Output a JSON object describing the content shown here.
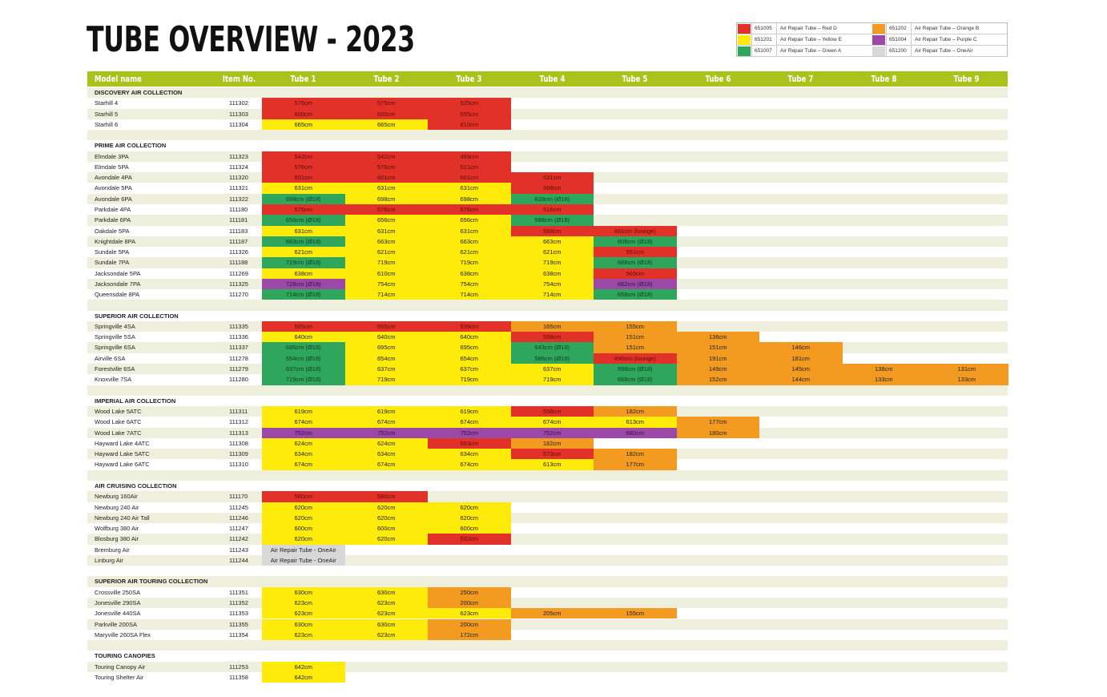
{
  "title": "TUBE OVERVIEW - 2023",
  "colors": {
    "R": "#e13128",
    "Y": "#ffeb0a",
    "G": "#2ea65b",
    "O": "#f39a20",
    "P": "#9b48a7",
    "A": "#d8d8d8",
    "header": "#a9c31c",
    "stripe": "#eef0dd"
  },
  "legend": [
    {
      "color": "R",
      "code": "651005",
      "name": "Air Repair Tube – Red D"
    },
    {
      "color": "Y",
      "code": "651201",
      "name": "Air Repair Tube – Yellow E"
    },
    {
      "color": "G",
      "code": "651007",
      "name": "Air Repair Tube – Green A"
    },
    {
      "color": "O",
      "code": "651202",
      "name": "Air Repair Tube – Orange B"
    },
    {
      "color": "P",
      "code": "651004",
      "name": "Air Repair Tube – Purple C"
    },
    {
      "color": "A",
      "code": "651200",
      "name": "Air Repair Tube – OneAir"
    }
  ],
  "columns": [
    "Model name",
    "Item No.",
    "Tube 1",
    "Tube 2",
    "Tube 3",
    "Tube 4",
    "Tube 5",
    "Tube 6",
    "Tube 7",
    "Tube 8",
    "Tube 9"
  ],
  "sections": [
    {
      "name": "DISCOVERY AIR COLLECTION",
      "rows": [
        {
          "model": "Starhill 4",
          "item": "111302",
          "cells": [
            [
              "575cm",
              "R"
            ],
            [
              "575cm",
              "R"
            ],
            [
              "525cm",
              "R"
            ]
          ]
        },
        {
          "model": "Starhill 5",
          "item": "111303",
          "cells": [
            [
              "600cm",
              "R"
            ],
            [
              "600cm",
              "R"
            ],
            [
              "555cm",
              "R"
            ]
          ]
        },
        {
          "model": "Starhill 6",
          "item": "111304",
          "cells": [
            [
              "665cm",
              "Y"
            ],
            [
              "665cm",
              "Y"
            ],
            [
              "610cm",
              "R"
            ]
          ]
        }
      ]
    },
    {
      "name": "PRIME AIR COLLECTION",
      "rows": [
        {
          "model": "Elmdale 3PA",
          "item": "111323",
          "cells": [
            [
              "542cm",
              "R"
            ],
            [
              "542cm",
              "R"
            ],
            [
              "489cm",
              "R"
            ]
          ]
        },
        {
          "model": "Elmdale 5PA",
          "item": "111324",
          "cells": [
            [
              "576cm",
              "R"
            ],
            [
              "576cm",
              "R"
            ],
            [
              "521cm",
              "R"
            ]
          ]
        },
        {
          "model": "Avondale 4PA",
          "item": "111320",
          "cells": [
            [
              "601cm",
              "R"
            ],
            [
              "601cm",
              "R"
            ],
            [
              "601cm",
              "R"
            ],
            [
              "531cm",
              "R"
            ]
          ]
        },
        {
          "model": "Avondale 5PA",
          "item": "111321",
          "cells": [
            [
              "631cm",
              "Y"
            ],
            [
              "631cm",
              "Y"
            ],
            [
              "631cm",
              "Y"
            ],
            [
              "568cm",
              "R"
            ]
          ]
        },
        {
          "model": "Avondale 6PA",
          "item": "111322",
          "cells": [
            [
              "698cm (Ø18)",
              "G"
            ],
            [
              "698cm",
              "Y"
            ],
            [
              "698cm",
              "Y"
            ],
            [
              "628cm (Ø18)",
              "G"
            ]
          ]
        },
        {
          "model": "Parkdale 4PA",
          "item": "111180",
          "cells": [
            [
              "576cm",
              "R"
            ],
            [
              "576cm",
              "R"
            ],
            [
              "576cm",
              "R"
            ],
            [
              "516cm",
              "R"
            ]
          ]
        },
        {
          "model": "Parkdale 6PA",
          "item": "111181",
          "cells": [
            [
              "656cm (Ø18)",
              "G"
            ],
            [
              "656cm",
              "Y"
            ],
            [
              "656cm",
              "Y"
            ],
            [
              "598cm (Ø18)",
              "G"
            ]
          ]
        },
        {
          "model": "Oakdale 5PA",
          "item": "111183",
          "cells": [
            [
              "631cm",
              "Y"
            ],
            [
              "631cm",
              "Y"
            ],
            [
              "631cm",
              "Y"
            ],
            [
              "569cm",
              "R"
            ],
            [
              "481cm (lounge)",
              "R"
            ]
          ]
        },
        {
          "model": "Knightdale 8PA",
          "item": "111187",
          "cells": [
            [
              "663cm (Ø18)",
              "G"
            ],
            [
              "663cm",
              "Y"
            ],
            [
              "663cm",
              "Y"
            ],
            [
              "663cm",
              "Y"
            ],
            [
              "608cm (Ø18)",
              "G"
            ]
          ]
        },
        {
          "model": "Sundale 5PA",
          "item": "111326",
          "cells": [
            [
              "621cm",
              "Y"
            ],
            [
              "621cm",
              "Y"
            ],
            [
              "621cm",
              "Y"
            ],
            [
              "621cm",
              "Y"
            ],
            [
              "551cm",
              "R"
            ]
          ]
        },
        {
          "model": "Sundale 7PA",
          "item": "111188",
          "cells": [
            [
              "719cm (Ø18)",
              "G"
            ],
            [
              "719cm",
              "Y"
            ],
            [
              "719cm",
              "Y"
            ],
            [
              "719cm",
              "Y"
            ],
            [
              "668cm (Ø18)",
              "G"
            ]
          ]
        },
        {
          "model": "Jacksondale 5PA",
          "item": "111269",
          "cells": [
            [
              "638cm",
              "Y"
            ],
            [
              "610cm",
              "Y"
            ],
            [
              "638cm",
              "Y"
            ],
            [
              "638cm",
              "Y"
            ],
            [
              "569cm",
              "R"
            ]
          ]
        },
        {
          "model": "Jacksondale 7PA",
          "item": "111325",
          "cells": [
            [
              "728cm (Ø18)",
              "P"
            ],
            [
              "754cm",
              "Y"
            ],
            [
              "754cm",
              "Y"
            ],
            [
              "754cm",
              "Y"
            ],
            [
              "682cm (Ø18)",
              "P"
            ]
          ]
        },
        {
          "model": "Queensdale 8PA",
          "item": "111270",
          "cells": [
            [
              "714cm (Ø18)",
              "G"
            ],
            [
              "714cm",
              "Y"
            ],
            [
              "714cm",
              "Y"
            ],
            [
              "714cm",
              "Y"
            ],
            [
              "658cm (Ø18)",
              "G"
            ]
          ]
        }
      ]
    },
    {
      "name": "SUPERIOR AIR COLLECTION",
      "rows": [
        {
          "model": "Springville 4SA",
          "item": "111335",
          "cells": [
            [
              "595cm",
              "R"
            ],
            [
              "595cm",
              "R"
            ],
            [
              "539cm",
              "R"
            ],
            [
              "165cm",
              "O"
            ],
            [
              "155cm",
              "O"
            ]
          ]
        },
        {
          "model": "Springville 5SA",
          "item": "111336",
          "cells": [
            [
              "640cm",
              "Y"
            ],
            [
              "640cm",
              "Y"
            ],
            [
              "640cm",
              "Y"
            ],
            [
              "558cm",
              "R"
            ],
            [
              "151cm",
              "O"
            ],
            [
              "136cm",
              "O"
            ]
          ]
        },
        {
          "model": "Springville 6SA",
          "item": "111337",
          "cells": [
            [
              "695cm (Ø18)",
              "G"
            ],
            [
              "695cm",
              "Y"
            ],
            [
              "695cm",
              "Y"
            ],
            [
              "643cm (Ø18)",
              "G"
            ],
            [
              "151cm",
              "O"
            ],
            [
              "151cm",
              "O"
            ],
            [
              "146cm",
              "O"
            ]
          ]
        },
        {
          "model": "Airville 6SA",
          "item": "111278",
          "cells": [
            [
              "654cm (Ø18)",
              "G"
            ],
            [
              "654cm",
              "Y"
            ],
            [
              "654cm",
              "Y"
            ],
            [
              "586cm (Ø18)",
              "G"
            ],
            [
              "490cm (lounge)",
              "R"
            ],
            [
              "191cm",
              "O"
            ],
            [
              "181cm",
              "O"
            ]
          ]
        },
        {
          "model": "Forestville 6SA",
          "item": "111279",
          "cells": [
            [
              "637cm (Ø18)",
              "G"
            ],
            [
              "637cm",
              "Y"
            ],
            [
              "637cm",
              "Y"
            ],
            [
              "637cm",
              "Y"
            ],
            [
              "596cm (Ø18)",
              "G"
            ],
            [
              "149cm",
              "O"
            ],
            [
              "145cm",
              "O"
            ],
            [
              "138cm",
              "O"
            ],
            [
              "131cm",
              "O"
            ]
          ]
        },
        {
          "model": "Knoxville 7SA",
          "item": "111280",
          "cells": [
            [
              "719cm (Ø18)",
              "G"
            ],
            [
              "719cm",
              "Y"
            ],
            [
              "719cm",
              "Y"
            ],
            [
              "719cm",
              "Y"
            ],
            [
              "668cm (Ø18)",
              "G"
            ],
            [
              "152cm",
              "O"
            ],
            [
              "144cm",
              "O"
            ],
            [
              "133cm",
              "O"
            ],
            [
              "133cm",
              "O"
            ]
          ]
        }
      ]
    },
    {
      "name": "IMPERIAL AIR COLLECTION",
      "rows": [
        {
          "model": "Wood Lake 5ATC",
          "item": "111311",
          "cells": [
            [
              "619cm",
              "Y"
            ],
            [
              "619cm",
              "Y"
            ],
            [
              "619cm",
              "Y"
            ],
            [
              "558cm",
              "R"
            ],
            [
              "182cm",
              "O"
            ]
          ]
        },
        {
          "model": "Wood Lake 6ATC",
          "item": "111312",
          "cells": [
            [
              "674cm",
              "Y"
            ],
            [
              "674cm",
              "Y"
            ],
            [
              "674cm",
              "Y"
            ],
            [
              "674cm",
              "Y"
            ],
            [
              "613cm",
              "Y"
            ],
            [
              "177cm",
              "O"
            ]
          ]
        },
        {
          "model": "Wood Lake 7ATC",
          "item": "111313",
          "cells": [
            [
              "752cm",
              "P"
            ],
            [
              "752cm",
              "P"
            ],
            [
              "752cm",
              "P"
            ],
            [
              "752cm",
              "P"
            ],
            [
              "680cm",
              "P"
            ],
            [
              "180cm",
              "O"
            ]
          ]
        },
        {
          "model": "Hayward Lake 4ATC",
          "item": "111308",
          "cells": [
            [
              "624cm",
              "Y"
            ],
            [
              "624cm",
              "Y"
            ],
            [
              "563cm",
              "R"
            ],
            [
              "182cm",
              "O"
            ]
          ]
        },
        {
          "model": "Hayward Lake 5ATC",
          "item": "111309",
          "cells": [
            [
              "634cm",
              "Y"
            ],
            [
              "634cm",
              "Y"
            ],
            [
              "634cm",
              "Y"
            ],
            [
              "573cm",
              "R"
            ],
            [
              "182cm",
              "O"
            ]
          ]
        },
        {
          "model": "Hayward Lake 6ATC",
          "item": "111310",
          "cells": [
            [
              "674cm",
              "Y"
            ],
            [
              "674cm",
              "Y"
            ],
            [
              "674cm",
              "Y"
            ],
            [
              "613cm",
              "Y"
            ],
            [
              "177cm",
              "O"
            ]
          ]
        }
      ]
    },
    {
      "name": "AIR CRUISING COLLECTION",
      "rows": [
        {
          "model": "Newburg 160Air",
          "item": "111170",
          "cells": [
            [
              "580cm",
              "R"
            ],
            [
              "580cm",
              "R"
            ]
          ]
        },
        {
          "model": "Newburg 240 Air",
          "item": "111245",
          "cells": [
            [
              "620cm",
              "Y"
            ],
            [
              "620cm",
              "Y"
            ],
            [
              "620cm",
              "Y"
            ]
          ]
        },
        {
          "model": "Newburg 240 Air Tall",
          "item": "111246",
          "cells": [
            [
              "620cm",
              "Y"
            ],
            [
              "620cm",
              "Y"
            ],
            [
              "620cm",
              "Y"
            ]
          ]
        },
        {
          "model": "Wolfburg 380 Air",
          "item": "111247",
          "cells": [
            [
              "600cm",
              "Y"
            ],
            [
              "600cm",
              "Y"
            ],
            [
              "600cm",
              "Y"
            ]
          ]
        },
        {
          "model": "Blosburg 380 Air",
          "item": "111242",
          "cells": [
            [
              "620cm",
              "Y"
            ],
            [
              "620cm",
              "Y"
            ],
            [
              "532cm",
              "R"
            ]
          ]
        },
        {
          "model": "Bremburg Air",
          "item": "111243",
          "cells": [
            [
              "Air Repair Tube - OneAir",
              "A"
            ]
          ]
        },
        {
          "model": "Linburg Air",
          "item": "111244",
          "cells": [
            [
              "Air Repair Tube - OneAir",
              "A"
            ]
          ]
        }
      ]
    },
    {
      "name": "SUPERIOR AIR TOURING COLLECTION",
      "rows": [
        {
          "model": "Crossville 250SA",
          "item": "111351",
          "cells": [
            [
              "630cm",
              "Y"
            ],
            [
              "630cm",
              "Y"
            ],
            [
              "250cm",
              "O"
            ]
          ]
        },
        {
          "model": "Jonesville 290SA",
          "item": "111352",
          "cells": [
            [
              "623cm",
              "Y"
            ],
            [
              "623cm",
              "Y"
            ],
            [
              "200cm",
              "O"
            ]
          ]
        },
        {
          "model": "Jonesville 440SA",
          "item": "111353",
          "cells": [
            [
              "623cm",
              "Y"
            ],
            [
              "623cm",
              "Y"
            ],
            [
              "623cm",
              "Y"
            ],
            [
              "205cm",
              "O"
            ],
            [
              "155cm",
              "O"
            ]
          ]
        },
        {
          "model": "Parkville 200SA",
          "item": "111355",
          "cells": [
            [
              "630cm",
              "Y"
            ],
            [
              "630cm",
              "Y"
            ],
            [
              "200cm",
              "O"
            ]
          ]
        },
        {
          "model": "Maryville 260SA Flex",
          "item": "111354",
          "cells": [
            [
              "623cm",
              "Y"
            ],
            [
              "623cm",
              "Y"
            ],
            [
              "172cm",
              "O"
            ]
          ]
        }
      ]
    },
    {
      "name": "TOURING CANOPIES",
      "rows": [
        {
          "model": "Touring Canopy Air",
          "item": "111253",
          "cells": [
            [
              "642cm",
              "Y"
            ]
          ]
        },
        {
          "model": "Touring Shelter Air",
          "item": "111358",
          "cells": [
            [
              "642cm",
              "Y"
            ]
          ]
        }
      ]
    }
  ]
}
